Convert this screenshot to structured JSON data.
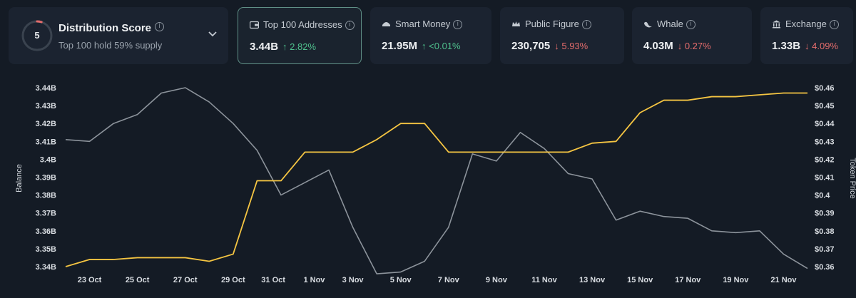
{
  "score": {
    "value": "5",
    "title": "Distribution Score",
    "subtitle": "Top 100 hold 59% supply",
    "ring_fraction": 0.05
  },
  "metrics": [
    {
      "label": "Top 100 Addresses",
      "value": "3.44B",
      "delta": "↑ 2.82%",
      "direction": "up",
      "icon": "wallet-icon"
    },
    {
      "label": "Smart Money",
      "value": "21.95M",
      "delta": "↑ <0.01%",
      "direction": "up",
      "icon": "smart-money-icon"
    },
    {
      "label": "Public Figure",
      "value": "230,705",
      "delta": "↓ 5.93%",
      "direction": "down",
      "icon": "crown-icon"
    },
    {
      "label": "Whale",
      "value": "4.03M",
      "delta": "↓ 0.27%",
      "direction": "down",
      "icon": "whale-icon"
    },
    {
      "label": "Exchange",
      "value": "1.33B",
      "delta": "↓ 4.09%",
      "direction": "down",
      "icon": "bank-icon"
    }
  ],
  "colors": {
    "balance_line": "#8c939b",
    "price_line": "#f5c542",
    "up": "#4fc08d",
    "down": "#e46c6c",
    "accent_border": "#5f8f86"
  },
  "chart_data": {
    "type": "line",
    "title": "",
    "xlabel": "",
    "ylabel": "Balance",
    "y2label": "Token Price",
    "x_ticks": [
      "23 Oct",
      "25 Oct",
      "27 Oct",
      "29 Oct",
      "31 Oct",
      "1 Nov",
      "3 Nov",
      "5 Nov",
      "7 Nov",
      "9 Nov",
      "11 Nov",
      "13 Nov",
      "15 Nov",
      "17 Nov",
      "19 Nov",
      "21 Nov"
    ],
    "y_ticks": [
      "3.34B",
      "3.35B",
      "3.36B",
      "3.37B",
      "3.38B",
      "3.39B",
      "3.4B",
      "3.41B",
      "3.42B",
      "3.43B",
      "3.44B"
    ],
    "y2_ticks": [
      "$0.36",
      "$0.37",
      "$0.38",
      "$0.39",
      "$0.4",
      "$0.41",
      "$0.42",
      "$0.43",
      "$0.44",
      "$0.45",
      "$0.46"
    ],
    "x_range": [
      0,
      31
    ],
    "ylim": [
      3.34,
      3.44
    ],
    "y2lim": [
      0.36,
      0.46
    ],
    "series": [
      {
        "name": "Balance",
        "axis": "left",
        "x": [
          0,
          1,
          2,
          3,
          4,
          5,
          6,
          7,
          8,
          9,
          10,
          11,
          12,
          13,
          14,
          15,
          16,
          17,
          18,
          19,
          20,
          21,
          22,
          23,
          24,
          25,
          26,
          27,
          28,
          29,
          30,
          31
        ],
        "values": [
          3.411,
          3.41,
          3.42,
          3.425,
          3.437,
          3.44,
          3.432,
          3.42,
          3.405,
          3.38,
          3.387,
          3.394,
          3.362,
          3.336,
          3.337,
          3.343,
          3.362,
          3.403,
          3.399,
          3.415,
          3.406,
          3.392,
          3.389,
          3.366,
          3.371,
          3.368,
          3.367,
          3.36,
          3.359,
          3.36,
          3.347,
          3.339
        ]
      },
      {
        "name": "Token Price",
        "axis": "right",
        "x": [
          0,
          1,
          2,
          3,
          4,
          5,
          6,
          7,
          8,
          9,
          10,
          11,
          12,
          13,
          14,
          15,
          16,
          17,
          18,
          19,
          20,
          21,
          22,
          23,
          24,
          25,
          26,
          27,
          28,
          29,
          30,
          31
        ],
        "values": [
          0.36,
          0.364,
          0.364,
          0.365,
          0.365,
          0.365,
          0.363,
          0.367,
          0.408,
          0.408,
          0.424,
          0.424,
          0.424,
          0.431,
          0.44,
          0.44,
          0.424,
          0.424,
          0.424,
          0.424,
          0.424,
          0.424,
          0.429,
          0.43,
          0.446,
          0.453,
          0.453,
          0.455,
          0.455,
          0.456,
          0.457,
          0.457
        ]
      }
    ]
  }
}
